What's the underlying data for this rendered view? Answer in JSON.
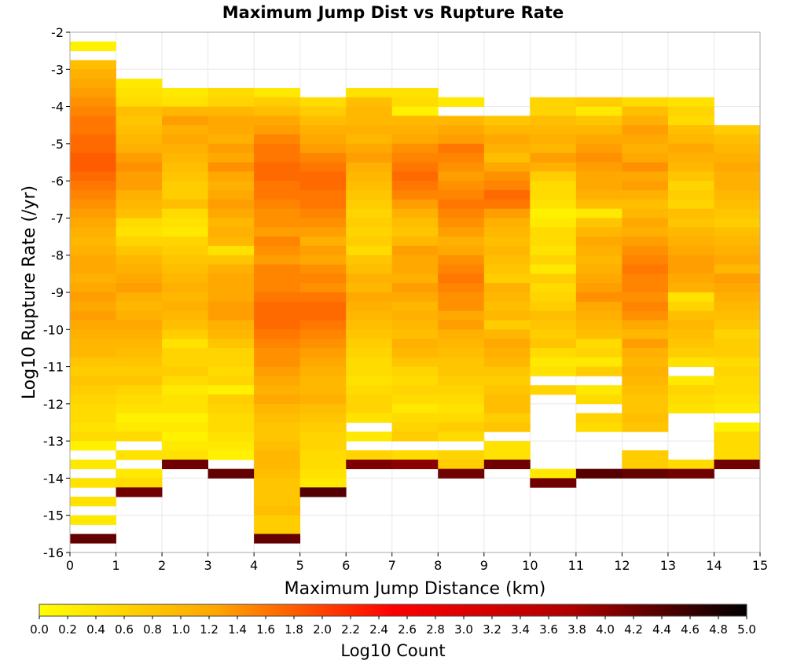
{
  "chart_data": {
    "type": "heatmap",
    "title": "Maximum Jump Dist vs Rupture Rate",
    "xlabel": "Maximum Jump Distance (km)",
    "ylabel": "Log10 Rupture Rate (/yr)",
    "xlim": [
      0,
      15
    ],
    "ylim": [
      -16,
      -2
    ],
    "x_ticks": [
      "0",
      "1",
      "2",
      "3",
      "4",
      "5",
      "6",
      "7",
      "8",
      "9",
      "10",
      "11",
      "12",
      "13",
      "14",
      "15"
    ],
    "y_ticks": [
      "-2",
      "-3",
      "-4",
      "-5",
      "-6",
      "-7",
      "-8",
      "-9",
      "-10",
      "-11",
      "-12",
      "-13",
      "-14",
      "-15",
      "-16"
    ],
    "bin_width_x": 1,
    "bin_height_y": 0.25,
    "grid": true,
    "colorbar": {
      "label": "Log10 Count",
      "range": [
        0,
        5
      ],
      "ticks": [
        "0.0",
        "0.2",
        "0.4",
        "0.6",
        "0.8",
        "1.0",
        "1.2",
        "1.4",
        "1.6",
        "1.8",
        "2.0",
        "2.2",
        "2.4",
        "2.6",
        "2.8",
        "3.0",
        "3.2",
        "3.4",
        "3.6",
        "3.8",
        "4.0",
        "4.2",
        "4.4",
        "4.6",
        "4.8",
        "5.0"
      ],
      "colors": [
        "#ffff00",
        "#ffa500",
        "#ff0000",
        "#b00000",
        "#000000"
      ]
    },
    "columns": [
      {
        "x": 0.5,
        "y_top": -2.25,
        "values": [
          0.2,
          null,
          0.9,
          1.1,
          1.2,
          1.3,
          1.4,
          1.5,
          1.6,
          1.6,
          1.7,
          1.7,
          1.8,
          1.8,
          1.7,
          1.6,
          1.5,
          1.4,
          1.3,
          1.2,
          1.1,
          1.0,
          1.1,
          1.2,
          1.2,
          1.1,
          1.2,
          1.3,
          1.2,
          1.3,
          1.2,
          1.1,
          1.0,
          1.0,
          0.8,
          0.7,
          0.8,
          0.7,
          0.6,
          0.5,
          0.5,
          0.4,
          0.5,
          0.2,
          null,
          0.3,
          null,
          0.4,
          null,
          0.4,
          null,
          0.3,
          null,
          4.3
        ]
      },
      {
        "x": 1.5,
        "y_top": -3.25,
        "values": [
          0.3,
          0.4,
          0.5,
          0.9,
          0.8,
          0.9,
          1.0,
          1.1,
          1.3,
          1.4,
          1.3,
          1.3,
          1.1,
          1.0,
          0.9,
          0.5,
          0.4,
          0.6,
          0.8,
          1.0,
          1.1,
          1.2,
          1.3,
          1.1,
          1.0,
          1.1,
          1.2,
          1.1,
          1.0,
          0.9,
          0.8,
          0.7,
          0.8,
          0.6,
          0.5,
          0.4,
          0.2,
          0.3,
          0.5,
          null,
          0.4,
          null,
          0.3,
          0.5,
          4.2
        ]
      },
      {
        "x": 2.5,
        "y_top": -3.5,
        "values": [
          0.3,
          0.4,
          1.0,
          1.3,
          1.1,
          1.2,
          1.1,
          1.0,
          0.9,
          0.8,
          0.7,
          0.7,
          0.9,
          0.5,
          0.4,
          0.3,
          0.6,
          0.7,
          0.8,
          0.9,
          1.0,
          1.1,
          1.0,
          1.1,
          1.0,
          0.9,
          0.7,
          0.4,
          0.6,
          0.6,
          0.7,
          0.5,
          0.3,
          0.4,
          0.4,
          0.2,
          0.3,
          0.2,
          0.3,
          0.4,
          4.2
        ]
      },
      {
        "x": 3.5,
        "y_top": -3.5,
        "values": [
          0.5,
          0.6,
          1.0,
          1.2,
          1.2,
          1.1,
          1.3,
          1.2,
          1.4,
          1.2,
          1.1,
          1.2,
          1.3,
          1.2,
          1.0,
          1.1,
          1.0,
          0.4,
          0.8,
          1.1,
          1.2,
          1.2,
          1.2,
          1.3,
          1.3,
          1.1,
          1.0,
          0.8,
          0.6,
          0.6,
          0.5,
          0.6,
          0.2,
          0.7,
          0.6,
          0.5,
          0.5,
          0.4,
          0.3,
          0.2,
          null,
          4.3
        ]
      },
      {
        "x": 4.5,
        "y_top": -3.5,
        "values": [
          0.3,
          0.7,
          0.9,
          1.2,
          1.3,
          1.5,
          1.6,
          1.6,
          1.7,
          1.7,
          1.6,
          1.6,
          1.5,
          1.4,
          1.4,
          1.3,
          1.5,
          1.4,
          1.3,
          1.5,
          1.5,
          1.5,
          1.6,
          1.7,
          1.7,
          1.7,
          1.6,
          1.5,
          1.4,
          1.4,
          1.3,
          1.2,
          1.1,
          1.2,
          1.0,
          0.9,
          0.8,
          0.8,
          0.9,
          1.0,
          1.0,
          0.9,
          0.8,
          0.8,
          0.8,
          0.9,
          0.7,
          0.7,
          4.3
        ]
      },
      {
        "x": 5.5,
        "y_top": -3.75,
        "values": [
          0.5,
          0.7,
          0.9,
          1.1,
          1.2,
          1.3,
          1.5,
          1.6,
          1.7,
          1.7,
          1.6,
          1.6,
          1.5,
          1.4,
          1.3,
          1.1,
          1.3,
          1.2,
          1.4,
          1.5,
          1.4,
          1.6,
          1.7,
          1.7,
          1.6,
          1.5,
          1.4,
          1.3,
          1.2,
          1.1,
          1.0,
          1.0,
          1.1,
          0.9,
          0.8,
          0.7,
          0.6,
          0.6,
          0.5,
          0.5,
          0.4,
          0.3,
          4.4
        ]
      },
      {
        "x": 6.5,
        "y_top": -3.5,
        "values": [
          0.4,
          0.9,
          1.0,
          1.0,
          1.1,
          1.0,
          1.2,
          1.3,
          1.1,
          1.0,
          0.9,
          0.8,
          0.7,
          0.6,
          0.7,
          0.6,
          0.7,
          0.5,
          0.8,
          0.9,
          1.1,
          1.0,
          1.2,
          1.1,
          1.0,
          0.9,
          0.8,
          0.7,
          0.6,
          0.5,
          0.5,
          0.4,
          0.5,
          0.6,
          0.6,
          0.4,
          null,
          0.3,
          null,
          0.6,
          4.1
        ]
      },
      {
        "x": 7.5,
        "y_top": -3.5,
        "values": [
          0.4,
          0.5,
          0.2,
          1.0,
          1.1,
          1.2,
          1.4,
          1.5,
          1.6,
          1.7,
          1.6,
          1.5,
          1.3,
          1.1,
          0.9,
          0.8,
          1.0,
          1.3,
          1.2,
          1.2,
          1.1,
          1.3,
          1.2,
          1.0,
          1.1,
          1.0,
          0.9,
          1.1,
          1.0,
          0.8,
          0.6,
          0.5,
          0.6,
          0.5,
          0.3,
          0.5,
          0.6,
          0.7,
          null,
          0.5,
          4.0
        ]
      },
      {
        "x": 8.5,
        "y_top": -3.75,
        "values": [
          0.3,
          null,
          1.0,
          1.2,
          1.3,
          1.6,
          1.5,
          1.4,
          1.3,
          1.4,
          1.5,
          1.6,
          1.5,
          1.4,
          1.3,
          1.1,
          1.2,
          1.4,
          1.5,
          1.6,
          1.5,
          1.4,
          1.4,
          1.2,
          1.3,
          1.1,
          1.0,
          0.9,
          0.8,
          0.8,
          0.7,
          0.6,
          0.5,
          0.4,
          0.5,
          0.7,
          0.5,
          null,
          0.6,
          0.7,
          4.2
        ]
      },
      {
        "x": 9.5,
        "y_top": -4.25,
        "values": [
          0.8,
          1.0,
          1.2,
          1.1,
          0.9,
          1.2,
          1.4,
          1.5,
          1.7,
          1.6,
          1.3,
          1.1,
          1.0,
          0.9,
          1.0,
          0.9,
          0.8,
          0.7,
          1.1,
          1.0,
          0.9,
          1.0,
          0.7,
          1.0,
          1.2,
          1.1,
          1.0,
          0.8,
          0.7,
          0.8,
          0.9,
          0.9,
          0.7,
          0.8,
          null,
          0.4,
          0.4,
          4.2
        ]
      },
      {
        "x": 10.5,
        "y_top": -3.75,
        "values": [
          0.6,
          0.6,
          0.9,
          1.0,
          1.1,
          1.0,
          1.3,
          1.1,
          0.7,
          0.5,
          0.5,
          0.4,
          0.2,
          0.3,
          0.5,
          0.5,
          0.4,
          0.6,
          0.3,
          0.7,
          0.5,
          0.6,
          0.7,
          0.9,
          0.8,
          0.7,
          0.8,
          0.5,
          0.3,
          0.4,
          null,
          0.6,
          null,
          null,
          null,
          null,
          null,
          null,
          null,
          null,
          0.3,
          4.2
        ]
      },
      {
        "x": 11.5,
        "y_top": -3.75,
        "values": [
          0.7,
          0.3,
          0.8,
          1.0,
          1.2,
          1.3,
          1.4,
          1.3,
          1.2,
          1.2,
          1.1,
          0.9,
          0.3,
          0.8,
          1.0,
          1.2,
          1.1,
          1.0,
          1.1,
          1.2,
          1.3,
          1.4,
          1.2,
          1.1,
          1.0,
          0.9,
          0.5,
          0.6,
          0.3,
          0.7,
          null,
          0.3,
          0.5,
          null,
          0.6,
          0.5,
          null,
          null,
          null,
          null,
          4.4
        ]
      },
      {
        "x": 12.5,
        "y_top": -3.75,
        "values": [
          0.5,
          0.9,
          1.1,
          1.3,
          1.2,
          1.1,
          1.2,
          1.4,
          1.2,
          1.3,
          1.1,
          0.9,
          1.0,
          1.2,
          1.1,
          1.3,
          1.4,
          1.5,
          1.6,
          1.5,
          1.5,
          1.4,
          1.5,
          1.4,
          1.2,
          1.0,
          1.3,
          1.1,
          1.0,
          1.1,
          1.0,
          0.9,
          0.8,
          0.8,
          0.9,
          0.8,
          null,
          null,
          0.7,
          0.7,
          4.3
        ]
      },
      {
        "x": 13.5,
        "y_top": -3.75,
        "values": [
          0.4,
          0.6,
          0.5,
          0.9,
          1.0,
          1.2,
          1.1,
          1.0,
          0.8,
          0.6,
          0.7,
          0.6,
          0.9,
          0.8,
          1.0,
          1.1,
          1.2,
          1.3,
          1.3,
          1.2,
          1.1,
          0.4,
          0.6,
          0.9,
          1.0,
          0.9,
          0.8,
          0.7,
          0.4,
          null,
          0.3,
          0.6,
          0.5,
          0.4,
          null,
          null,
          null,
          null,
          null,
          0.5,
          4.2
        ]
      },
      {
        "x": 14.5,
        "y_top": -4.5,
        "values": [
          0.7,
          0.9,
          1.0,
          1.1,
          1.2,
          1.1,
          1.1,
          1.0,
          0.9,
          0.8,
          0.7,
          0.9,
          1.0,
          1.1,
          1.2,
          1.0,
          1.3,
          1.2,
          1.1,
          1.0,
          0.9,
          0.8,
          0.6,
          0.7,
          0.7,
          0.5,
          0.6,
          0.5,
          0.5,
          0.4,
          0.3,
          null,
          0.2,
          0.5,
          0.5,
          0.5,
          4.2
        ]
      }
    ]
  }
}
